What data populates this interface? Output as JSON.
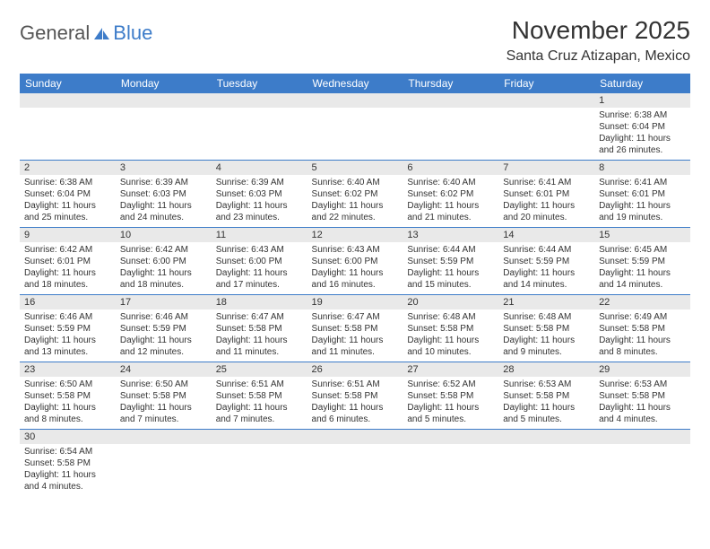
{
  "brand": {
    "part1": "General",
    "part2": "Blue"
  },
  "title": "November 2025",
  "location": "Santa Cruz Atizapan, Mexico",
  "colors": {
    "header_bg": "#3d7cc9",
    "daynum_bg": "#e9e9e9",
    "row_border": "#3d7cc9"
  },
  "weekdays": [
    "Sunday",
    "Monday",
    "Tuesday",
    "Wednesday",
    "Thursday",
    "Friday",
    "Saturday"
  ],
  "labels": {
    "sunrise": "Sunrise:",
    "sunset": "Sunset:",
    "daylight": "Daylight:"
  },
  "weeks": [
    [
      null,
      null,
      null,
      null,
      null,
      null,
      {
        "n": "1",
        "sr": "6:38 AM",
        "ss": "6:04 PM",
        "dl": "11 hours and 26 minutes."
      }
    ],
    [
      {
        "n": "2",
        "sr": "6:38 AM",
        "ss": "6:04 PM",
        "dl": "11 hours and 25 minutes."
      },
      {
        "n": "3",
        "sr": "6:39 AM",
        "ss": "6:03 PM",
        "dl": "11 hours and 24 minutes."
      },
      {
        "n": "4",
        "sr": "6:39 AM",
        "ss": "6:03 PM",
        "dl": "11 hours and 23 minutes."
      },
      {
        "n": "5",
        "sr": "6:40 AM",
        "ss": "6:02 PM",
        "dl": "11 hours and 22 minutes."
      },
      {
        "n": "6",
        "sr": "6:40 AM",
        "ss": "6:02 PM",
        "dl": "11 hours and 21 minutes."
      },
      {
        "n": "7",
        "sr": "6:41 AM",
        "ss": "6:01 PM",
        "dl": "11 hours and 20 minutes."
      },
      {
        "n": "8",
        "sr": "6:41 AM",
        "ss": "6:01 PM",
        "dl": "11 hours and 19 minutes."
      }
    ],
    [
      {
        "n": "9",
        "sr": "6:42 AM",
        "ss": "6:01 PM",
        "dl": "11 hours and 18 minutes."
      },
      {
        "n": "10",
        "sr": "6:42 AM",
        "ss": "6:00 PM",
        "dl": "11 hours and 18 minutes."
      },
      {
        "n": "11",
        "sr": "6:43 AM",
        "ss": "6:00 PM",
        "dl": "11 hours and 17 minutes."
      },
      {
        "n": "12",
        "sr": "6:43 AM",
        "ss": "6:00 PM",
        "dl": "11 hours and 16 minutes."
      },
      {
        "n": "13",
        "sr": "6:44 AM",
        "ss": "5:59 PM",
        "dl": "11 hours and 15 minutes."
      },
      {
        "n": "14",
        "sr": "6:44 AM",
        "ss": "5:59 PM",
        "dl": "11 hours and 14 minutes."
      },
      {
        "n": "15",
        "sr": "6:45 AM",
        "ss": "5:59 PM",
        "dl": "11 hours and 14 minutes."
      }
    ],
    [
      {
        "n": "16",
        "sr": "6:46 AM",
        "ss": "5:59 PM",
        "dl": "11 hours and 13 minutes."
      },
      {
        "n": "17",
        "sr": "6:46 AM",
        "ss": "5:59 PM",
        "dl": "11 hours and 12 minutes."
      },
      {
        "n": "18",
        "sr": "6:47 AM",
        "ss": "5:58 PM",
        "dl": "11 hours and 11 minutes."
      },
      {
        "n": "19",
        "sr": "6:47 AM",
        "ss": "5:58 PM",
        "dl": "11 hours and 11 minutes."
      },
      {
        "n": "20",
        "sr": "6:48 AM",
        "ss": "5:58 PM",
        "dl": "11 hours and 10 minutes."
      },
      {
        "n": "21",
        "sr": "6:48 AM",
        "ss": "5:58 PM",
        "dl": "11 hours and 9 minutes."
      },
      {
        "n": "22",
        "sr": "6:49 AM",
        "ss": "5:58 PM",
        "dl": "11 hours and 8 minutes."
      }
    ],
    [
      {
        "n": "23",
        "sr": "6:50 AM",
        "ss": "5:58 PM",
        "dl": "11 hours and 8 minutes."
      },
      {
        "n": "24",
        "sr": "6:50 AM",
        "ss": "5:58 PM",
        "dl": "11 hours and 7 minutes."
      },
      {
        "n": "25",
        "sr": "6:51 AM",
        "ss": "5:58 PM",
        "dl": "11 hours and 7 minutes."
      },
      {
        "n": "26",
        "sr": "6:51 AM",
        "ss": "5:58 PM",
        "dl": "11 hours and 6 minutes."
      },
      {
        "n": "27",
        "sr": "6:52 AM",
        "ss": "5:58 PM",
        "dl": "11 hours and 5 minutes."
      },
      {
        "n": "28",
        "sr": "6:53 AM",
        "ss": "5:58 PM",
        "dl": "11 hours and 5 minutes."
      },
      {
        "n": "29",
        "sr": "6:53 AM",
        "ss": "5:58 PM",
        "dl": "11 hours and 4 minutes."
      }
    ],
    [
      {
        "n": "30",
        "sr": "6:54 AM",
        "ss": "5:58 PM",
        "dl": "11 hours and 4 minutes."
      },
      null,
      null,
      null,
      null,
      null,
      null
    ]
  ]
}
